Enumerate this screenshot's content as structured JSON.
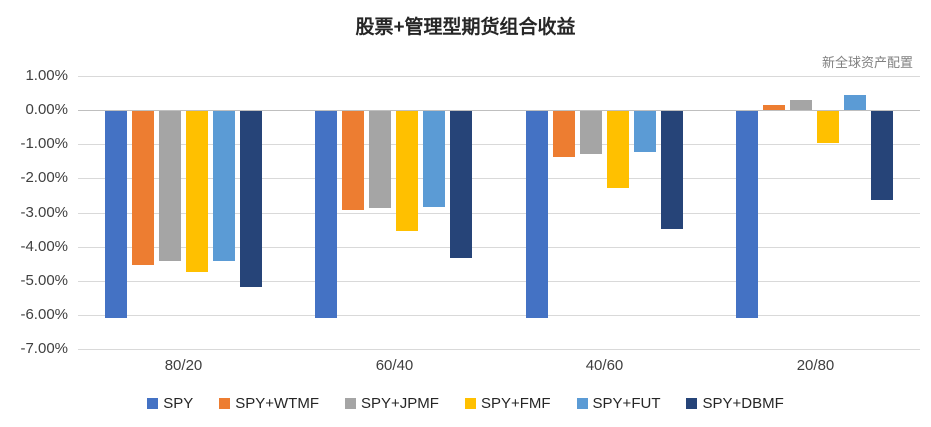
{
  "title": "股票+管理型期货组合收益",
  "watermark": "新全球资产配置",
  "chart_data": {
    "type": "bar",
    "title": "股票+管理型期货组合收益",
    "xlabel": "",
    "ylabel": "",
    "categories": [
      "80/20",
      "60/40",
      "40/60",
      "20/80"
    ],
    "series": [
      {
        "name": "SPY",
        "color": "#4472C4",
        "values": [
          -6.05,
          -6.05,
          -6.05,
          -6.05
        ]
      },
      {
        "name": "SPY+WTMF",
        "color": "#ED7D31",
        "values": [
          -4.5,
          -2.9,
          -1.35,
          0.15
        ]
      },
      {
        "name": "SPY+JPMF",
        "color": "#A5A5A5",
        "values": [
          -4.4,
          -2.85,
          -1.25,
          0.3
        ]
      },
      {
        "name": "SPY+FMF",
        "color": "#FFC000",
        "values": [
          -4.7,
          -3.5,
          -2.25,
          -0.95
        ]
      },
      {
        "name": "SPY+FUT",
        "color": "#5B9BD5",
        "values": [
          -4.4,
          -2.8,
          -1.2,
          0.45
        ]
      },
      {
        "name": "SPY+DBMF",
        "color": "#264478",
        "values": [
          -5.15,
          -4.3,
          -3.45,
          -2.6
        ]
      }
    ],
    "ylim": [
      -7,
      1
    ],
    "ytick_step": 1,
    "ytick_labels": [
      "1.00%",
      "0.00%",
      "-1.00%",
      "-2.00%",
      "-3.00%",
      "-4.00%",
      "-5.00%",
      "-6.00%",
      "-7.00%"
    ],
    "grid": true,
    "legend_position": "bottom"
  },
  "style_colors": {
    "background": "#FFFFFF",
    "gridline": "#D9D9D9",
    "zero_axis": "#BFBFBF",
    "axis_text": "#404040",
    "title_text": "#262626",
    "watermark_text": "#808080"
  }
}
